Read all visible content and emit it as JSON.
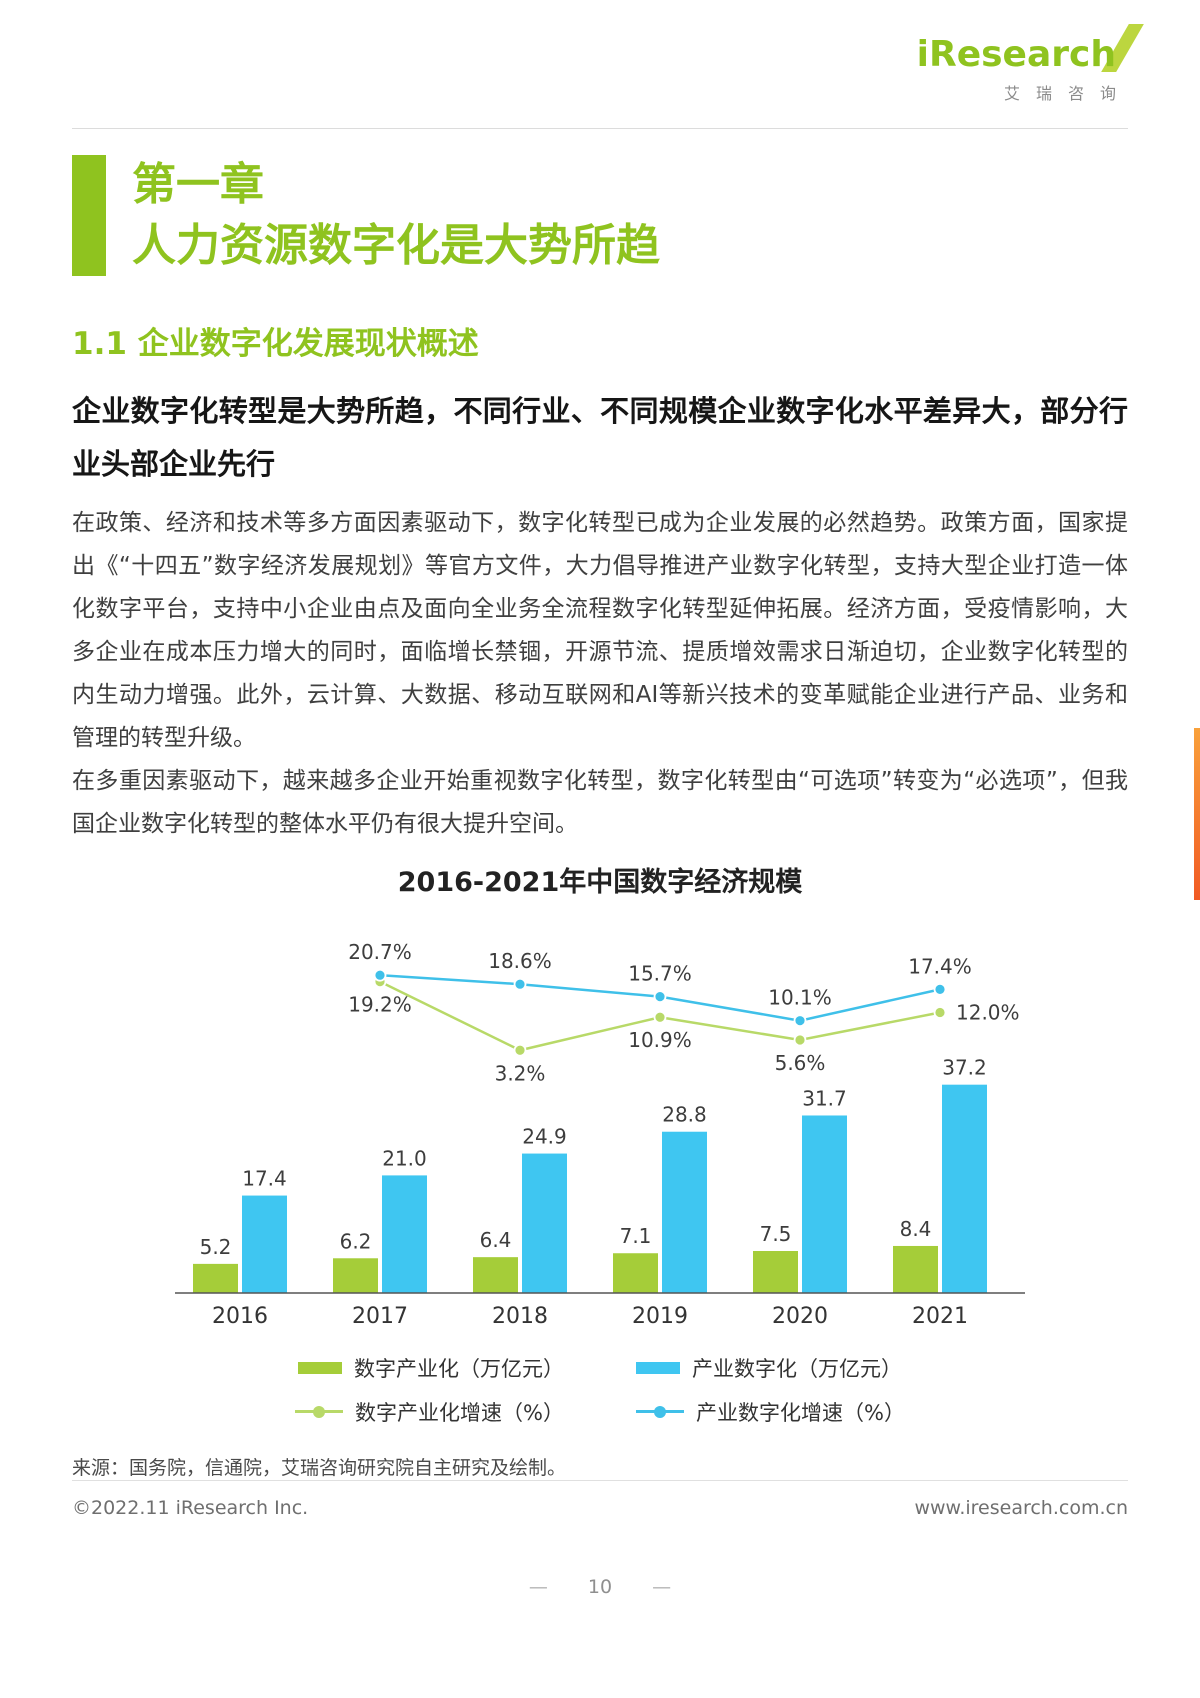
{
  "header": {
    "logo_text": "iResearch",
    "logo_subtext": "艾瑞咨询"
  },
  "chapter": {
    "kicker": "第一章",
    "title": "人力资源数字化是大势所趋"
  },
  "section": {
    "heading": "1.1 企业数字化发展现状概述",
    "subtitle": "企业数字化转型是大势所趋，不同行业、不同规模企业数字化水平差异大，部分行业头部企业先行",
    "paragraph1": "在政策、经济和技术等多方面因素驱动下，数字化转型已成为企业发展的必然趋势。政策方面，国家提出《“十四五”数字经济发展规划》等官方文件，大力倡导推进产业数字化转型，支持大型企业打造一体化数字平台，支持中小企业由点及面向全业务全流程数字化转型延伸拓展。经济方面，受疫情影响，大多企业在成本压力增大的同时，面临增长禁锢，开源节流、提质增效需求日渐迫切，企业数字化转型的内生动力增强。此外，云计算、大数据、移动互联网和AI等新兴技术的变革赋能企业进行产品、业务和管理的转型升级。",
    "paragraph2": "在多重因素驱动下，越来越多企业开始重视数字化转型，数字化转型由“可选项”转变为“必选项”，但我国企业数字化转型的整体水平仍有很大提升空间。"
  },
  "chart_data": {
    "type": "bar+line",
    "title": "2016-2021年中国数字经济规模",
    "categories": [
      "2016",
      "2017",
      "2018",
      "2019",
      "2020",
      "2021"
    ],
    "xlabel": "",
    "ylabel": "",
    "grid": false,
    "legend_position": "bottom",
    "series": [
      {
        "key": "digital-industrialization",
        "name": "数字产业化（万亿元）",
        "type": "bar",
        "color": "#a5cd39",
        "values": [
          5.2,
          6.2,
          6.4,
          7.1,
          7.5,
          8.4
        ],
        "labels": [
          "5.2",
          "6.2",
          "6.4",
          "7.1",
          "7.5",
          "8.4"
        ]
      },
      {
        "key": "industry-digitalization",
        "name": "产业数字化（万亿元）",
        "type": "bar",
        "color": "#3fc6f1",
        "values": [
          17.4,
          21.0,
          24.9,
          28.8,
          31.7,
          37.2
        ],
        "labels": [
          "17.4",
          "21.0",
          "24.9",
          "28.8",
          "31.7",
          "37.2"
        ]
      },
      {
        "key": "digital-industrialization-growth",
        "name": "数字产业化增速（%）",
        "type": "line",
        "color": "#b8d968",
        "values": [
          null,
          19.2,
          3.2,
          10.9,
          5.6,
          12.0
        ],
        "labels": [
          null,
          "19.2%",
          "3.2%",
          "10.9%",
          "5.6%",
          "12.0%"
        ]
      },
      {
        "key": "industry-digitalization-growth",
        "name": "产业数字化增速（%）",
        "type": "line",
        "color": "#3fc0e9",
        "values": [
          null,
          20.7,
          18.6,
          15.7,
          10.1,
          17.4
        ],
        "labels": [
          null,
          "20.7%",
          "18.6%",
          "15.7%",
          "10.1%",
          "17.4%"
        ]
      }
    ]
  },
  "source": "来源：国务院，信通院，艾瑞咨询研究院自主研究及绘制。",
  "footer": {
    "copyright": "©2022.11 iResearch Inc.",
    "website": "www.iresearch.com.cn",
    "page_number": "10"
  },
  "colors": {
    "brand_green": "#8fc31f",
    "bar_green": "#a5cd39",
    "bar_blue": "#3fc6f1",
    "line_green": "#b8d968",
    "line_blue": "#3fc0e9",
    "accent_orange": "#f15a24"
  }
}
